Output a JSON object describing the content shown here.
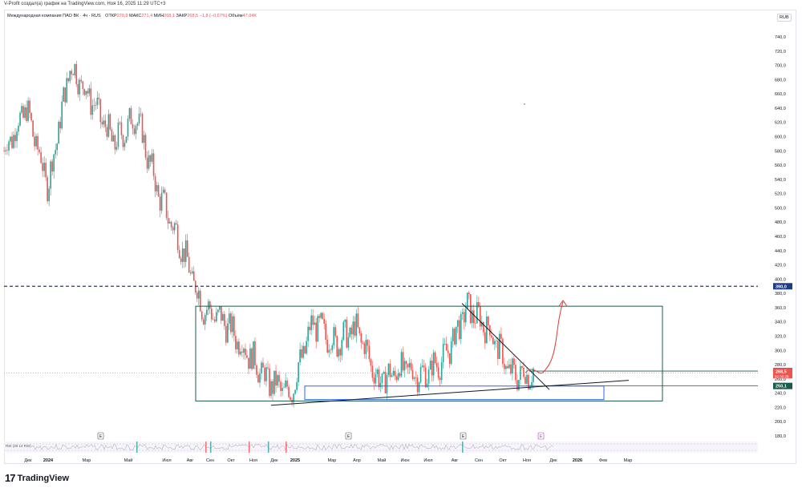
{
  "header": {
    "author_line": "V-Profit создал(а) график на TradingView.com, Ноя 16, 2025 11:29 UTC+3"
  },
  "legend": {
    "symbol": "Международная компания ПАО ВК · 4ч · RUS",
    "open_label": "ОТКР",
    "open_value": "270,9",
    "high_label": "МАКС",
    "high_value": "271,4",
    "low_label": "МИН",
    "low_value": "268,1",
    "close_label": "ЗАКР",
    "close_value": "268,5",
    "change": "−1,8 (−0,67%)",
    "volume_label": "Объём",
    "volume_value": "47,04K"
  },
  "currency": "RUB",
  "rsi_label": "RSI (20 14 RSI)",
  "event_markers": [
    "E",
    "E",
    "E",
    "E"
  ],
  "price_tags": {
    "level_390": "390,0",
    "level_271": "271,0",
    "last_price": "268,5",
    "countdown": "02:30:28",
    "level_250": "250,1"
  },
  "brand": {
    "mark": "17",
    "name": "TradingView"
  },
  "colors": {
    "up": "#26a69a",
    "down": "#ef5350",
    "box": "#1e5a4b",
    "dashed_level": "#1e3a8a",
    "blue_box": "#2962ff",
    "projection": "#e53935"
  },
  "chart_data": {
    "type": "candlestick",
    "title": "Международная компания ПАО ВК · 4ч · RUS",
    "timeframe": "4ч",
    "y_axis_ticks": [
      "740,0",
      "720,0",
      "700,0",
      "680,0",
      "660,0",
      "640,0",
      "620,0",
      "600,0",
      "580,0",
      "560,0",
      "540,0",
      "520,0",
      "500,0",
      "480,0",
      "460,0",
      "440,0",
      "420,0",
      "400,0",
      "380,0",
      "360,0",
      "340,0",
      "320,0",
      "300,0",
      "280,0",
      "260,0",
      "240,0",
      "220,0",
      "200,0",
      "180,0"
    ],
    "ylim": [
      175,
      755
    ],
    "x_axis_ticks": [
      "Дек",
      "2024",
      "Мар",
      "Май",
      "Июл",
      "Авг",
      "Сен",
      "Окт",
      "Ноя",
      "Дек",
      "2025",
      "Мар",
      "Апр",
      "Май",
      "Июн",
      "Июл",
      "Авг",
      "Сен",
      "Окт",
      "Ноя",
      "Дек",
      "2026",
      "Фев",
      "Мар"
    ],
    "price_path": [
      {
        "t": "Nov 2023",
        "v": 580
      },
      {
        "t": "Dec 2023",
        "v": 640
      },
      {
        "t": "Jan 2024",
        "v": 530
      },
      {
        "t": "Feb 2024",
        "v": 700
      },
      {
        "t": "Mar 2024",
        "v": 650
      },
      {
        "t": "Apr 2024",
        "v": 590
      },
      {
        "t": "May 2024",
        "v": 630
      },
      {
        "t": "Jun 2024",
        "v": 520
      },
      {
        "t": "Jul 2024",
        "v": 450
      },
      {
        "t": "Aug 2024",
        "v": 360
      },
      {
        "t": "Sep 2024",
        "v": 340
      },
      {
        "t": "Oct 2024",
        "v": 300
      },
      {
        "t": "Nov 2024",
        "v": 255
      },
      {
        "t": "Dec 2024",
        "v": 240
      },
      {
        "t": "Jan 2025",
        "v": 340
      },
      {
        "t": "Feb 2025",
        "v": 310
      },
      {
        "t": "Mar 2025",
        "v": 330
      },
      {
        "t": "Apr 2025",
        "v": 255
      },
      {
        "t": "May 2025",
        "v": 275
      },
      {
        "t": "Jun 2025",
        "v": 265
      },
      {
        "t": "Jul 2025",
        "v": 290
      },
      {
        "t": "Aug 2025",
        "v": 360
      },
      {
        "t": "Sep 2025",
        "v": 330
      },
      {
        "t": "Oct 2025",
        "v": 265
      },
      {
        "t": "Nov 2025",
        "v": 268.5
      }
    ],
    "levels": [
      {
        "label": "390,0",
        "value": 390,
        "style": "dashed"
      },
      {
        "label": "271,0",
        "value": 271,
        "style": "solid"
      },
      {
        "label": "250,1",
        "value": 250.1,
        "style": "solid"
      }
    ],
    "range_box": {
      "top": 362,
      "bottom": 229
    },
    "inner_box": {
      "top": 250,
      "bottom": 231
    },
    "projection": [
      {
        "t": "Nov 2025",
        "v": 268.5
      },
      {
        "t": "Dec 2025",
        "v": 370
      }
    ],
    "legend": "none",
    "grid": false
  }
}
